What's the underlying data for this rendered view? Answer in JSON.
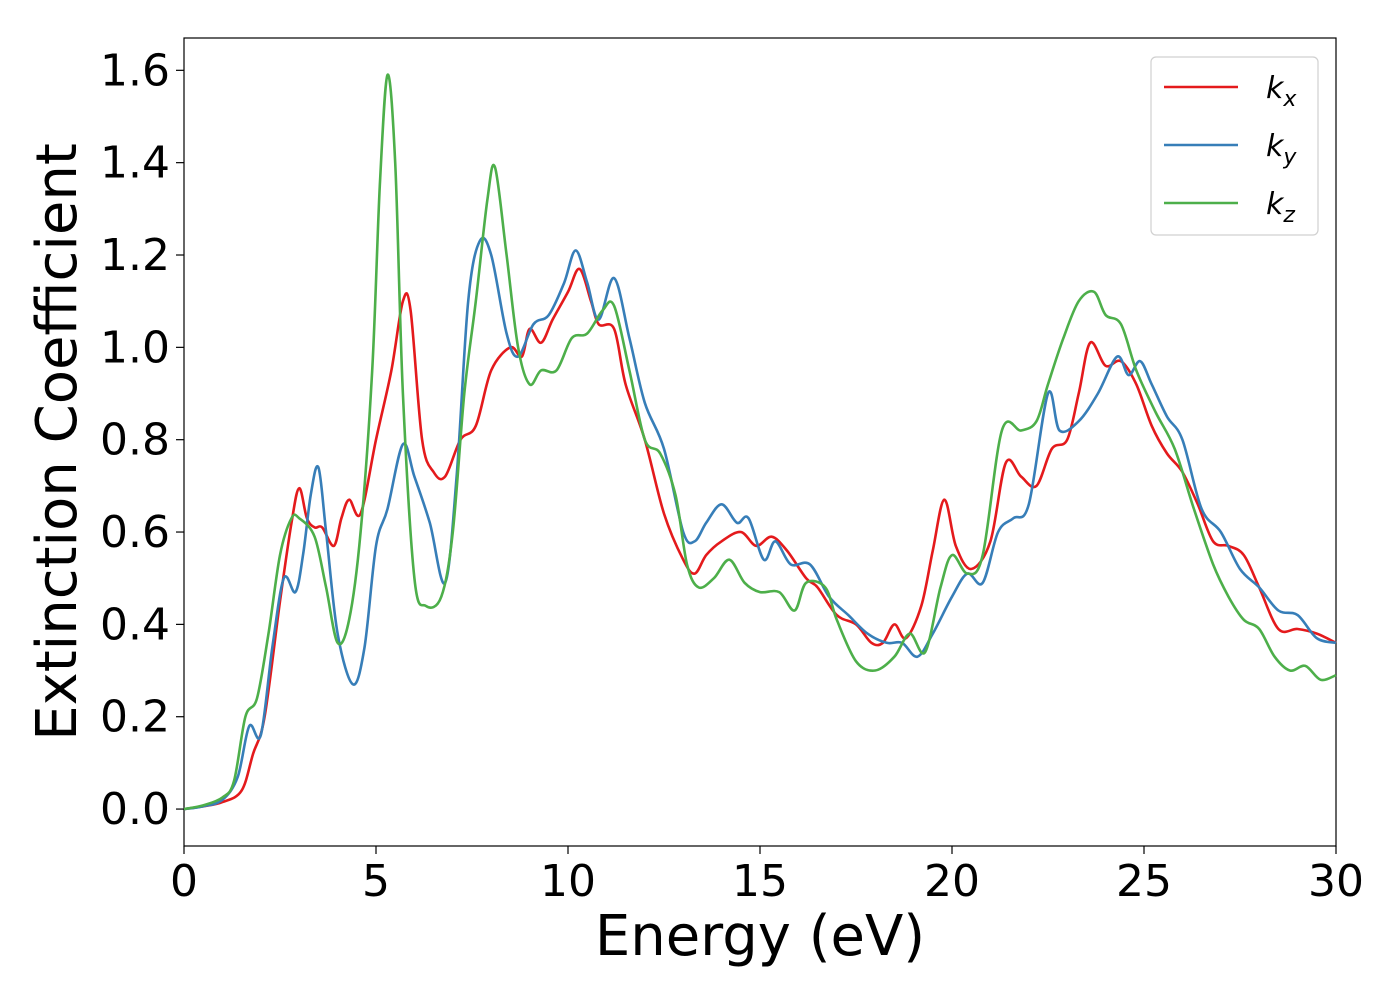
{
  "chart_data": {
    "type": "line",
    "xlabel": "Energy (eV)",
    "ylabel": "Extinction Coefficient",
    "xlim": [
      0,
      30
    ],
    "ylim": [
      -0.08,
      1.67
    ],
    "xticks": [
      "0",
      "5",
      "10",
      "15",
      "20",
      "25",
      "30"
    ],
    "yticks": [
      "0.0",
      "0.2",
      "0.4",
      "0.6",
      "0.8",
      "1.0",
      "1.2",
      "1.4",
      "1.6"
    ],
    "grid": false,
    "legend_position": "top-right",
    "series": [
      {
        "name": "k",
        "subscript": "x",
        "color": "#e41a1c",
        "points": [
          [
            0,
            0.0
          ],
          [
            0.5,
            0.006
          ],
          [
            1.0,
            0.015
          ],
          [
            1.5,
            0.04
          ],
          [
            1.8,
            0.12
          ],
          [
            2.1,
            0.2
          ],
          [
            2.5,
            0.45
          ],
          [
            2.8,
            0.62
          ],
          [
            3.0,
            0.695
          ],
          [
            3.2,
            0.63
          ],
          [
            3.4,
            0.61
          ],
          [
            3.6,
            0.61
          ],
          [
            3.9,
            0.57
          ],
          [
            4.1,
            0.63
          ],
          [
            4.3,
            0.67
          ],
          [
            4.6,
            0.64
          ],
          [
            5.0,
            0.8
          ],
          [
            5.4,
            0.95
          ],
          [
            5.7,
            1.1
          ],
          [
            5.9,
            1.08
          ],
          [
            6.2,
            0.8
          ],
          [
            6.5,
            0.73
          ],
          [
            6.8,
            0.72
          ],
          [
            7.2,
            0.8
          ],
          [
            7.6,
            0.83
          ],
          [
            8.0,
            0.95
          ],
          [
            8.5,
            1.0
          ],
          [
            8.8,
            0.98
          ],
          [
            9.0,
            1.04
          ],
          [
            9.3,
            1.01
          ],
          [
            9.6,
            1.06
          ],
          [
            10.0,
            1.12
          ],
          [
            10.3,
            1.17
          ],
          [
            10.6,
            1.1
          ],
          [
            10.8,
            1.05
          ],
          [
            11.2,
            1.04
          ],
          [
            11.5,
            0.92
          ],
          [
            12.0,
            0.8
          ],
          [
            12.5,
            0.64
          ],
          [
            13.0,
            0.54
          ],
          [
            13.3,
            0.51
          ],
          [
            13.6,
            0.55
          ],
          [
            14.0,
            0.58
          ],
          [
            14.5,
            0.6
          ],
          [
            14.9,
            0.57
          ],
          [
            15.3,
            0.59
          ],
          [
            15.7,
            0.56
          ],
          [
            16.2,
            0.5
          ],
          [
            16.5,
            0.48
          ],
          [
            17.0,
            0.42
          ],
          [
            17.5,
            0.4
          ],
          [
            17.9,
            0.36
          ],
          [
            18.2,
            0.36
          ],
          [
            18.5,
            0.4
          ],
          [
            18.8,
            0.37
          ],
          [
            19.2,
            0.44
          ],
          [
            19.5,
            0.56
          ],
          [
            19.8,
            0.67
          ],
          [
            20.1,
            0.57
          ],
          [
            20.5,
            0.52
          ],
          [
            21.0,
            0.58
          ],
          [
            21.4,
            0.75
          ],
          [
            21.8,
            0.72
          ],
          [
            22.2,
            0.7
          ],
          [
            22.6,
            0.78
          ],
          [
            23.0,
            0.8
          ],
          [
            23.3,
            0.9
          ],
          [
            23.6,
            1.01
          ],
          [
            24.0,
            0.96
          ],
          [
            24.4,
            0.97
          ],
          [
            24.8,
            0.92
          ],
          [
            25.2,
            0.83
          ],
          [
            25.6,
            0.77
          ],
          [
            26.0,
            0.73
          ],
          [
            26.4,
            0.66
          ],
          [
            26.8,
            0.58
          ],
          [
            27.2,
            0.57
          ],
          [
            27.6,
            0.55
          ],
          [
            28.0,
            0.48
          ],
          [
            28.5,
            0.39
          ],
          [
            29.0,
            0.39
          ],
          [
            29.5,
            0.38
          ],
          [
            30.0,
            0.36
          ]
        ]
      },
      {
        "name": "k",
        "subscript": "y",
        "color": "#377eb8",
        "points": [
          [
            0,
            0.0
          ],
          [
            0.5,
            0.006
          ],
          [
            1.0,
            0.02
          ],
          [
            1.4,
            0.07
          ],
          [
            1.7,
            0.18
          ],
          [
            2.0,
            0.16
          ],
          [
            2.3,
            0.35
          ],
          [
            2.6,
            0.5
          ],
          [
            2.9,
            0.47
          ],
          [
            3.1,
            0.55
          ],
          [
            3.3,
            0.68
          ],
          [
            3.5,
            0.74
          ],
          [
            3.7,
            0.6
          ],
          [
            4.0,
            0.38
          ],
          [
            4.4,
            0.27
          ],
          [
            4.7,
            0.35
          ],
          [
            5.0,
            0.57
          ],
          [
            5.3,
            0.65
          ],
          [
            5.7,
            0.79
          ],
          [
            6.0,
            0.72
          ],
          [
            6.4,
            0.62
          ],
          [
            6.8,
            0.49
          ],
          [
            7.1,
            0.72
          ],
          [
            7.4,
            1.1
          ],
          [
            7.7,
            1.23
          ],
          [
            8.0,
            1.2
          ],
          [
            8.4,
            1.03
          ],
          [
            8.7,
            0.98
          ],
          [
            9.1,
            1.05
          ],
          [
            9.5,
            1.07
          ],
          [
            9.9,
            1.14
          ],
          [
            10.2,
            1.21
          ],
          [
            10.5,
            1.14
          ],
          [
            10.8,
            1.06
          ],
          [
            11.2,
            1.15
          ],
          [
            11.6,
            1.02
          ],
          [
            12.0,
            0.88
          ],
          [
            12.5,
            0.78
          ],
          [
            13.0,
            0.6
          ],
          [
            13.3,
            0.58
          ],
          [
            13.6,
            0.62
          ],
          [
            14.0,
            0.66
          ],
          [
            14.4,
            0.62
          ],
          [
            14.7,
            0.63
          ],
          [
            15.1,
            0.54
          ],
          [
            15.4,
            0.58
          ],
          [
            15.8,
            0.53
          ],
          [
            16.3,
            0.53
          ],
          [
            16.8,
            0.46
          ],
          [
            17.3,
            0.42
          ],
          [
            17.8,
            0.38
          ],
          [
            18.3,
            0.36
          ],
          [
            18.7,
            0.36
          ],
          [
            19.1,
            0.33
          ],
          [
            19.5,
            0.38
          ],
          [
            20.0,
            0.46
          ],
          [
            20.4,
            0.51
          ],
          [
            20.8,
            0.49
          ],
          [
            21.2,
            0.6
          ],
          [
            21.6,
            0.63
          ],
          [
            22.0,
            0.66
          ],
          [
            22.5,
            0.9
          ],
          [
            22.8,
            0.82
          ],
          [
            23.3,
            0.84
          ],
          [
            23.8,
            0.9
          ],
          [
            24.3,
            0.98
          ],
          [
            24.6,
            0.94
          ],
          [
            24.9,
            0.97
          ],
          [
            25.2,
            0.92
          ],
          [
            25.6,
            0.85
          ],
          [
            26.0,
            0.8
          ],
          [
            26.5,
            0.65
          ],
          [
            27.0,
            0.6
          ],
          [
            27.5,
            0.52
          ],
          [
            28.0,
            0.48
          ],
          [
            28.5,
            0.43
          ],
          [
            29.0,
            0.42
          ],
          [
            29.5,
            0.37
          ],
          [
            30.0,
            0.36
          ]
        ]
      },
      {
        "name": "k",
        "subscript": "z",
        "color": "#4daf4a",
        "points": [
          [
            0,
            0.0
          ],
          [
            0.5,
            0.008
          ],
          [
            1.0,
            0.025
          ],
          [
            1.3,
            0.06
          ],
          [
            1.6,
            0.2
          ],
          [
            1.9,
            0.24
          ],
          [
            2.2,
            0.38
          ],
          [
            2.5,
            0.55
          ],
          [
            2.8,
            0.63
          ],
          [
            3.0,
            0.63
          ],
          [
            3.4,
            0.59
          ],
          [
            3.7,
            0.48
          ],
          [
            4.0,
            0.36
          ],
          [
            4.3,
            0.41
          ],
          [
            4.6,
            0.6
          ],
          [
            4.9,
            0.95
          ],
          [
            5.1,
            1.35
          ],
          [
            5.3,
            1.59
          ],
          [
            5.5,
            1.4
          ],
          [
            5.7,
            0.9
          ],
          [
            6.0,
            0.5
          ],
          [
            6.3,
            0.44
          ],
          [
            6.7,
            0.46
          ],
          [
            7.0,
            0.6
          ],
          [
            7.3,
            0.9
          ],
          [
            7.6,
            1.1
          ],
          [
            7.9,
            1.32
          ],
          [
            8.1,
            1.39
          ],
          [
            8.4,
            1.2
          ],
          [
            8.7,
            1.0
          ],
          [
            9.0,
            0.92
          ],
          [
            9.3,
            0.95
          ],
          [
            9.7,
            0.95
          ],
          [
            10.1,
            1.02
          ],
          [
            10.5,
            1.03
          ],
          [
            10.9,
            1.08
          ],
          [
            11.2,
            1.09
          ],
          [
            11.6,
            0.95
          ],
          [
            12.0,
            0.8
          ],
          [
            12.4,
            0.77
          ],
          [
            12.8,
            0.68
          ],
          [
            13.1,
            0.53
          ],
          [
            13.4,
            0.48
          ],
          [
            13.8,
            0.5
          ],
          [
            14.2,
            0.54
          ],
          [
            14.6,
            0.49
          ],
          [
            15.0,
            0.47
          ],
          [
            15.5,
            0.47
          ],
          [
            15.9,
            0.43
          ],
          [
            16.2,
            0.49
          ],
          [
            16.7,
            0.48
          ],
          [
            17.0,
            0.41
          ],
          [
            17.5,
            0.32
          ],
          [
            18.0,
            0.3
          ],
          [
            18.5,
            0.33
          ],
          [
            18.9,
            0.38
          ],
          [
            19.3,
            0.34
          ],
          [
            19.7,
            0.48
          ],
          [
            20.0,
            0.55
          ],
          [
            20.4,
            0.51
          ],
          [
            20.8,
            0.55
          ],
          [
            21.3,
            0.82
          ],
          [
            21.8,
            0.82
          ],
          [
            22.2,
            0.84
          ],
          [
            22.5,
            0.92
          ],
          [
            22.9,
            1.02
          ],
          [
            23.3,
            1.1
          ],
          [
            23.7,
            1.12
          ],
          [
            24.0,
            1.07
          ],
          [
            24.4,
            1.05
          ],
          [
            24.8,
            0.95
          ],
          [
            25.3,
            0.86
          ],
          [
            25.8,
            0.78
          ],
          [
            26.3,
            0.65
          ],
          [
            26.8,
            0.53
          ],
          [
            27.2,
            0.46
          ],
          [
            27.6,
            0.41
          ],
          [
            28.0,
            0.39
          ],
          [
            28.4,
            0.33
          ],
          [
            28.8,
            0.3
          ],
          [
            29.2,
            0.31
          ],
          [
            29.6,
            0.28
          ],
          [
            30.0,
            0.29
          ]
        ]
      }
    ]
  }
}
